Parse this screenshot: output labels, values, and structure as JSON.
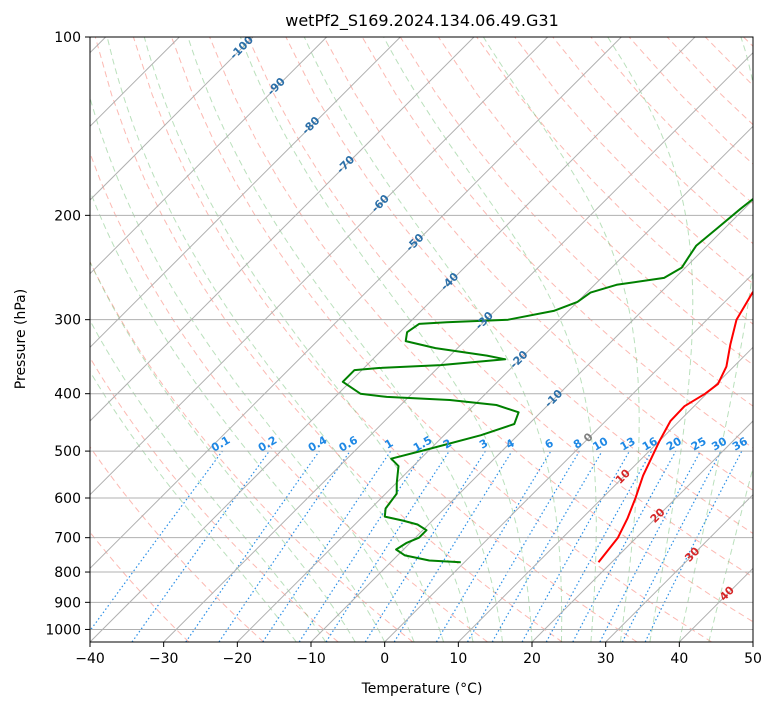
{
  "chart_data": {
    "type": "line",
    "chart_kind": "skew-T log-P sounding",
    "title": "wetPf2_S169.2024.134.06.49.G31",
    "xlabel": "Temperature (°C)",
    "ylabel": "Pressure (hPa)",
    "xlim": [
      -40,
      50
    ],
    "ylim": [
      1050,
      100
    ],
    "y_scale": "log",
    "grid": true,
    "x_ticks": [
      -40,
      -30,
      -20,
      -10,
      0,
      10,
      20,
      30,
      40,
      50
    ],
    "y_ticks": [
      100,
      200,
      300,
      400,
      500,
      600,
      700,
      800,
      900,
      1000
    ],
    "series": [
      {
        "color": "#ff0000",
        "points": [
          [
            18.2,
            770
          ],
          [
            17.5,
            700
          ],
          [
            16.2,
            650
          ],
          [
            14.5,
            600
          ],
          [
            12.5,
            550
          ],
          [
            10.0,
            480
          ],
          [
            8.8,
            445
          ],
          [
            8.7,
            420
          ],
          [
            9.8,
            400
          ],
          [
            10.2,
            385
          ],
          [
            9.0,
            360
          ],
          [
            6.5,
            330
          ],
          [
            4.0,
            300
          ],
          [
            2.5,
            270
          ],
          [
            2.5,
            250
          ],
          [
            3.5,
            230
          ],
          [
            5.0,
            210
          ],
          [
            7.5,
            190
          ],
          [
            10.0,
            175
          ],
          [
            12.5,
            160
          ],
          [
            14.5,
            150
          ],
          [
            16.0,
            140
          ],
          [
            16.8,
            130
          ],
          [
            17.4,
            124
          ],
          [
            19.0,
            120
          ],
          [
            21.5,
            114
          ],
          [
            23.0,
            108
          ],
          [
            23.8,
            104
          ],
          [
            24.5,
            100
          ]
        ]
      },
      {
        "color": "#008000",
        "points": [
          [
            -0.5,
            770
          ],
          [
            -5,
            765
          ],
          [
            -9,
            750
          ],
          [
            -11,
            733
          ],
          [
            -10.5,
            715
          ],
          [
            -9.5,
            700
          ],
          [
            -9.5,
            680
          ],
          [
            -11.5,
            665
          ],
          [
            -14,
            655
          ],
          [
            -17,
            645
          ],
          [
            -18,
            625
          ],
          [
            -18.5,
            590
          ],
          [
            -20,
            565
          ],
          [
            -22,
            530
          ],
          [
            -24,
            515
          ],
          [
            -20,
            495
          ],
          [
            -15,
            470
          ],
          [
            -12,
            450
          ],
          [
            -13,
            430
          ],
          [
            -17,
            418
          ],
          [
            -24,
            410
          ],
          [
            -33,
            405
          ],
          [
            -37,
            400
          ],
          [
            -41,
            382
          ],
          [
            -41,
            365
          ],
          [
            -38,
            362
          ],
          [
            -30,
            358
          ],
          [
            -22,
            350
          ],
          [
            -25,
            345
          ],
          [
            -33,
            335
          ],
          [
            -38,
            326
          ],
          [
            -39,
            315
          ],
          [
            -38.5,
            305
          ],
          [
            -35,
            303
          ],
          [
            -27,
            300
          ],
          [
            -22,
            290
          ],
          [
            -20,
            280
          ],
          [
            -19.5,
            270
          ],
          [
            -17,
            262
          ],
          [
            -11.5,
            255
          ],
          [
            -10.5,
            245
          ],
          [
            -11,
            235
          ],
          [
            -11.5,
            225
          ],
          [
            -11,
            210
          ],
          [
            -10.5,
            195
          ],
          [
            -10,
            185
          ],
          [
            -8.5,
            175
          ],
          [
            -8.5,
            170
          ],
          [
            -10.5,
            160
          ],
          [
            -11,
            150
          ],
          [
            -11,
            140
          ],
          [
            -9,
            132
          ],
          [
            -5.5,
            125
          ],
          [
            -5.5,
            115
          ],
          [
            -4.5,
            108
          ],
          [
            -2,
            100
          ]
        ]
      }
    ],
    "isotherm_labels": [
      "-100",
      "-90",
      "-80",
      "-70",
      "-60",
      "-50",
      "-40",
      "-30",
      "-20",
      "-10",
      "0",
      "10",
      "20",
      "30",
      "40"
    ],
    "mixing_ratio_labels": [
      "0.1",
      "0.2",
      "0.4",
      "0.6",
      "1",
      "1.5",
      "2",
      "3",
      "4",
      "6",
      "8",
      "10",
      "13",
      "16",
      "20",
      "25",
      "30",
      "36"
    ],
    "colors": {
      "temperature": "#ff0000",
      "dewpoint": "#008000",
      "isotherm_label": "#2b6fa8",
      "isotherm_label_warm": "#d62728",
      "isotherm_label_zero": "#808080",
      "mixing_ratio": "#1e88e5",
      "dry_adiabat": "#fa8072",
      "moist_adiabat": "#66bb6a",
      "grid": "#b0b0b0"
    }
  }
}
